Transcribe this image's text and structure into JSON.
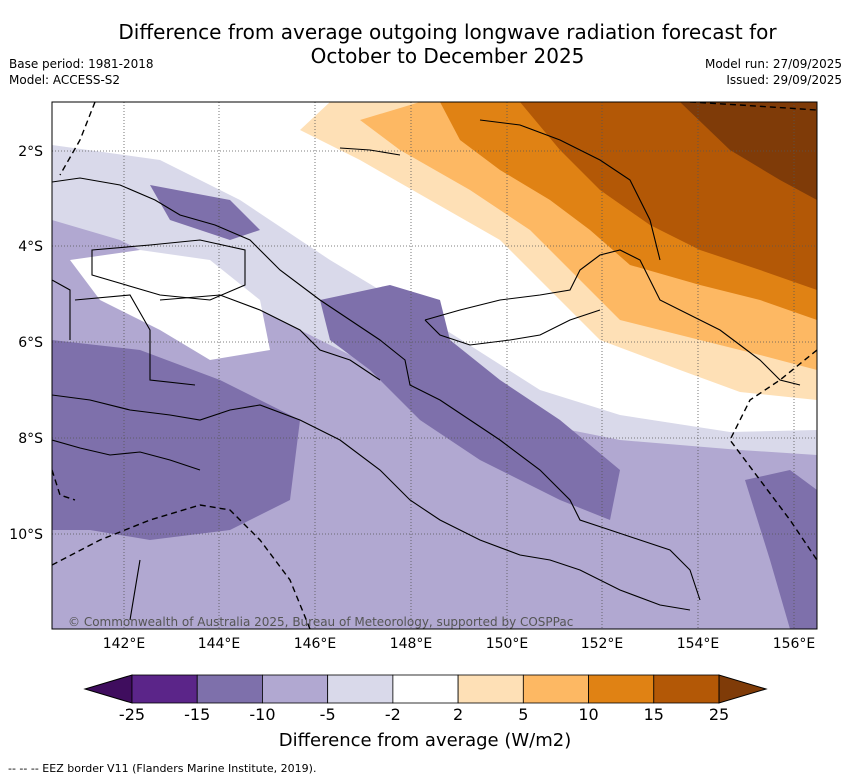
{
  "header": {
    "title_line1": "Difference from average outgoing longwave radiation forecast for",
    "title_line2": "October to December 2025",
    "base_period": "Base period: 1981-2018",
    "model": "Model: ACCESS-S2",
    "model_run": "Model run: 27/09/2025",
    "issued": "Issued: 29/09/2025"
  },
  "map": {
    "lat_labels": [
      "2°S",
      "4°S",
      "6°S",
      "8°S",
      "10°S"
    ],
    "lon_labels": [
      "142°E",
      "144°E",
      "146°E",
      "148°E",
      "150°E",
      "152°E",
      "154°E",
      "156°E"
    ],
    "copyright": "© Commonwealth of Australia 2025, Bureau of Meteorology, supported by COSPPac"
  },
  "colorbar": {
    "ticks": [
      "-25",
      "-15",
      "-10",
      "-5",
      "-2",
      "2",
      "5",
      "10",
      "15",
      "25"
    ],
    "colors": [
      "#3f0d5e",
      "#5b2589",
      "#7e70ab",
      "#b1a8d1",
      "#d9d9ea",
      "#ffffff",
      "#fee0b6",
      "#fdb863",
      "#e08214",
      "#b35806",
      "#7f3b08"
    ],
    "title": "Difference from average (W/m2)"
  },
  "footnote": "--  --  -- EEZ border V11 (Flanders Marine Institute, 2019)."
}
